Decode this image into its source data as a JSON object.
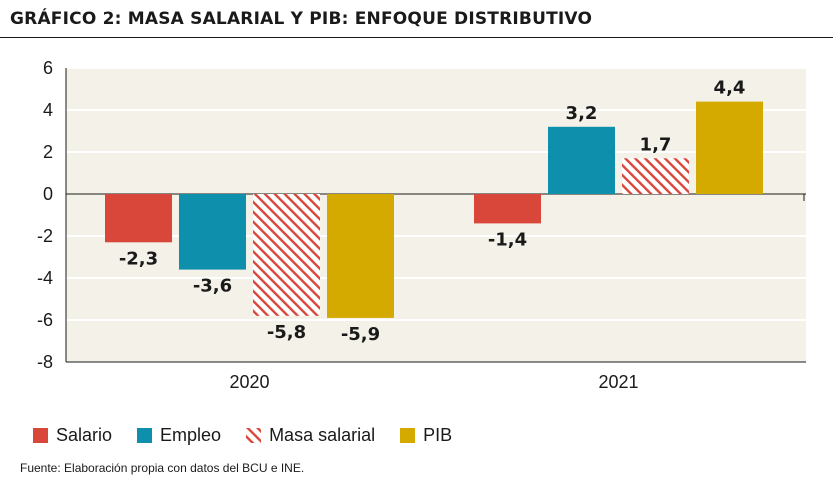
{
  "chart_data": {
    "type": "bar",
    "title": "GRÁFICO 2: MASA SALARIAL Y PIB: ENFOQUE DISTRIBUTIVO",
    "categories": [
      "2020",
      "2021"
    ],
    "series": [
      {
        "name": "Salario",
        "values": [
          -2.3,
          -1.4
        ],
        "labels": [
          "-2,3",
          "-1,4"
        ],
        "color": "#d9463a",
        "pattern": "solid"
      },
      {
        "name": "Empleo",
        "values": [
          -3.6,
          3.2
        ],
        "labels": [
          "-3,6",
          "3,2"
        ],
        "color": "#0e8fab",
        "pattern": "solid"
      },
      {
        "name": "Masa salarial",
        "values": [
          -5.8,
          1.7
        ],
        "labels": [
          "-5,8",
          "1,7"
        ],
        "color": "#d9463a",
        "pattern": "hatched"
      },
      {
        "name": "PIB",
        "values": [
          -5.9,
          4.4
        ],
        "labels": [
          "-5,9",
          "4,4"
        ],
        "color": "#d4aa00",
        "pattern": "solid"
      }
    ],
    "ylim": [
      -8,
      6
    ],
    "yticks": [
      "6",
      "4",
      "2",
      "0",
      "-2",
      "-4",
      "-6",
      "-8"
    ],
    "ytick_values": [
      6,
      4,
      2,
      0,
      -2,
      -4,
      -6,
      -8
    ],
    "grid": true,
    "legend_position": "bottom-left",
    "plot_background": "#f4f2e8",
    "source": "Fuente: Elaboración propia con datos del BCU e INE."
  }
}
